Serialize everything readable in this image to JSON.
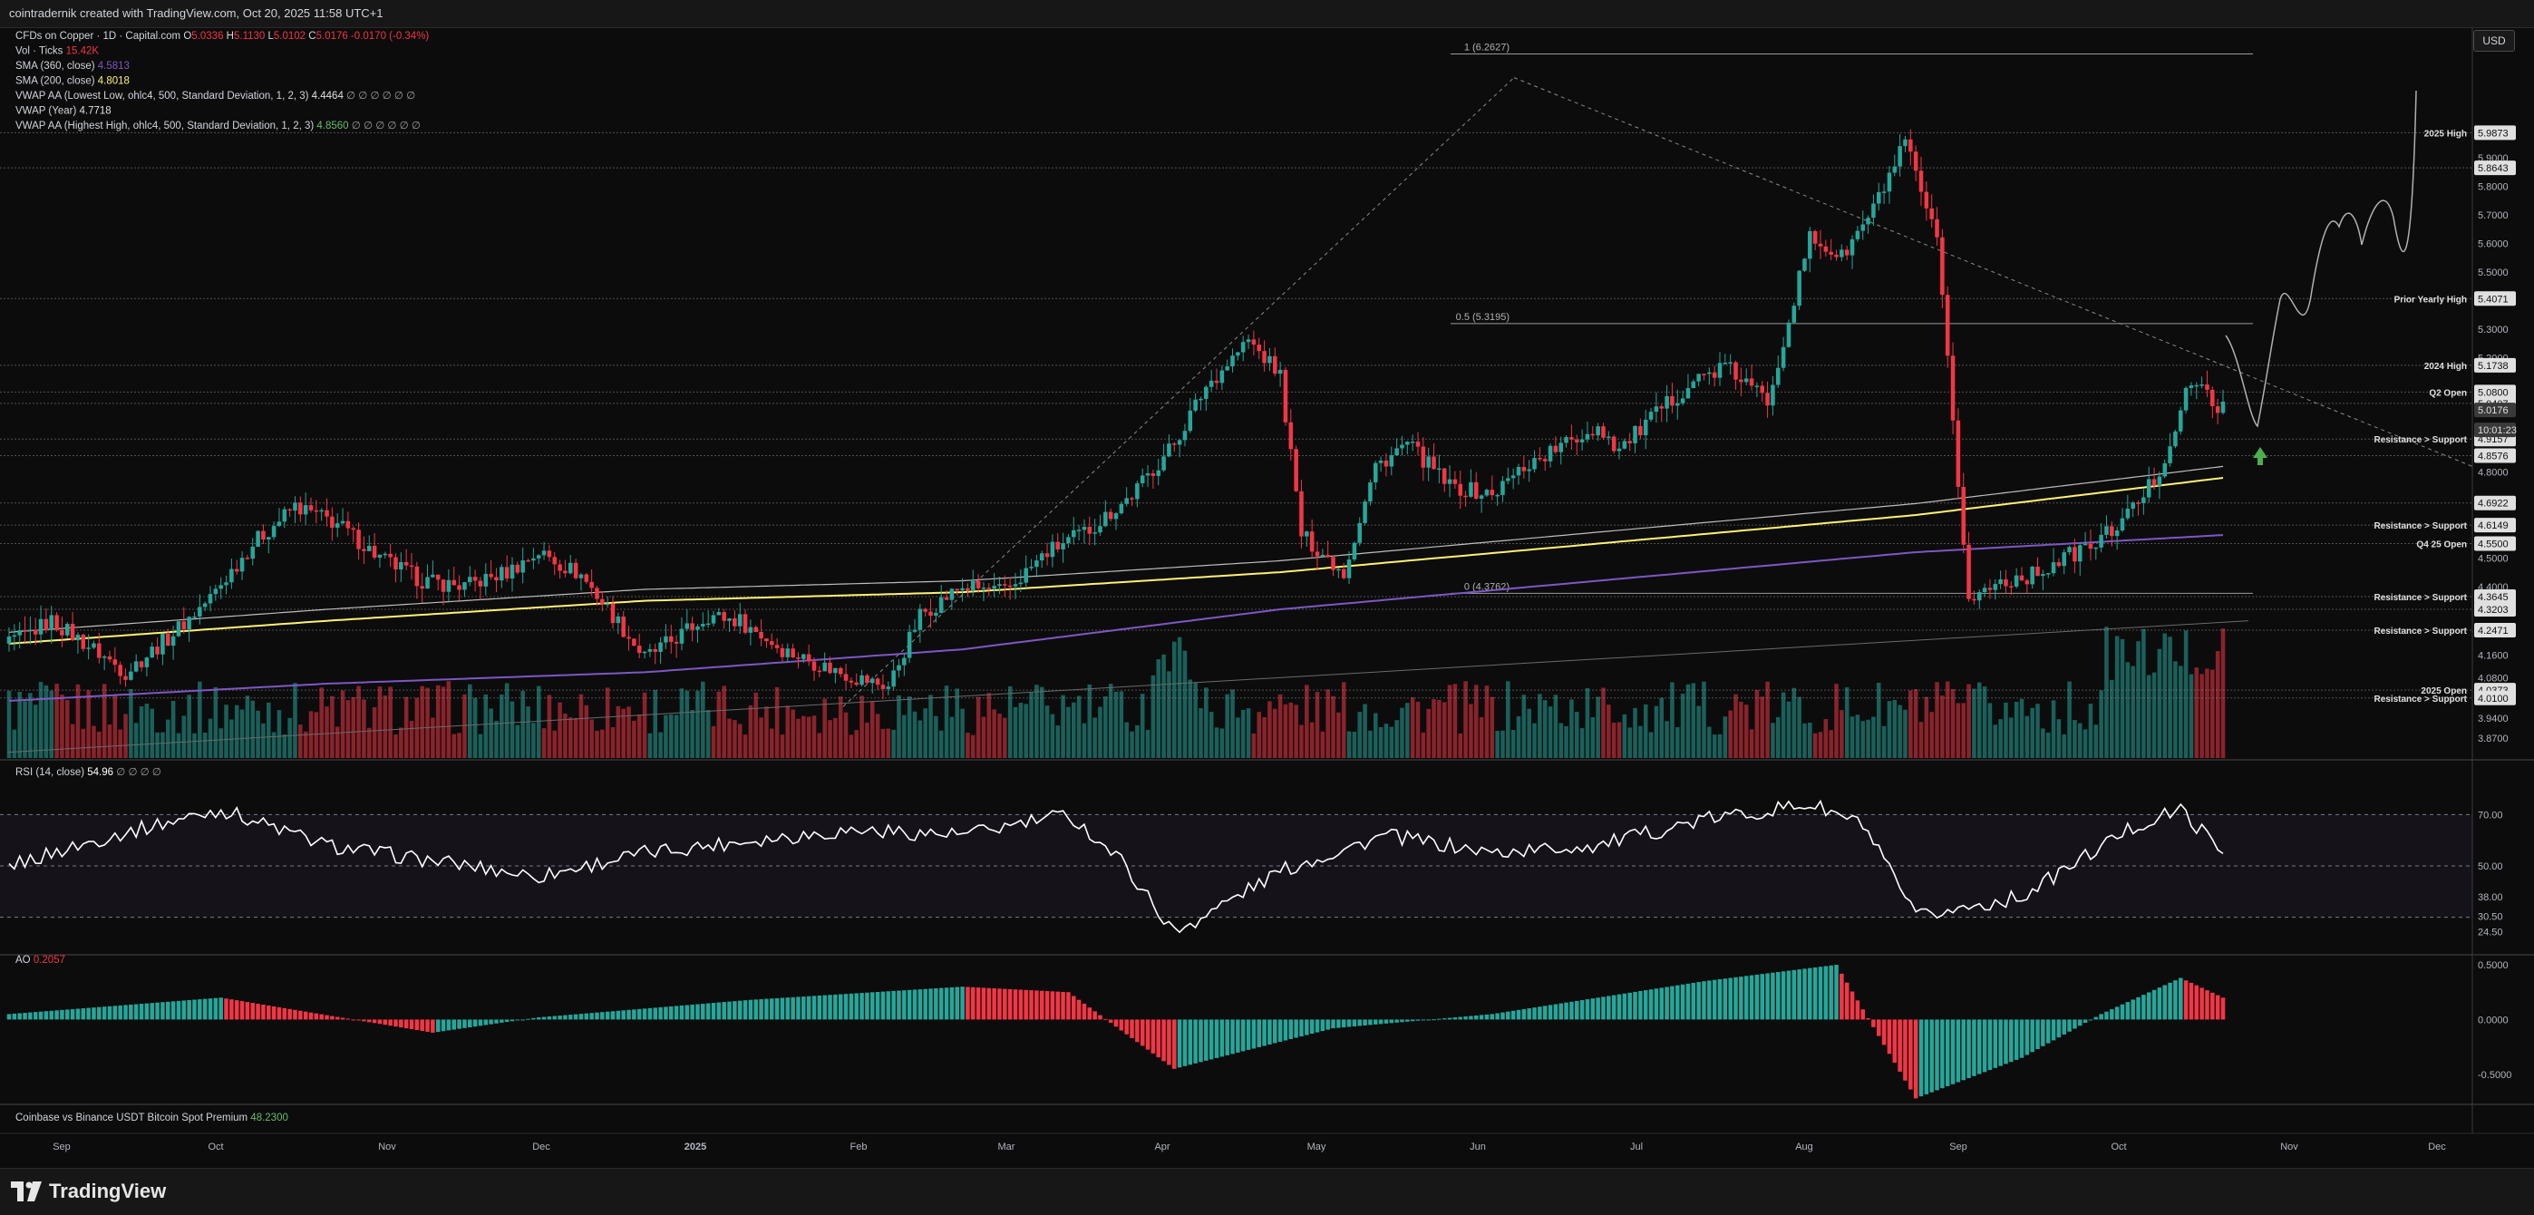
{
  "topbar": {
    "text": "cointradernik created with TradingView.com, Oct 20, 2025 11:58 UTC+1"
  },
  "legend": [
    {
      "parts": [
        [
          "CFDs on Copper · 1D · Capital.com ",
          "#d1d4dc"
        ],
        [
          "O",
          "#d1d4dc"
        ],
        [
          "5.0336 ",
          "#f23645"
        ],
        [
          "H",
          "#d1d4dc"
        ],
        [
          "5.1130 ",
          "#f23645"
        ],
        [
          "L",
          "#d1d4dc"
        ],
        [
          "5.0102 ",
          "#f23645"
        ],
        [
          "C",
          "#d1d4dc"
        ],
        [
          "5.0176 -0.0170 (-0.34%)",
          "#f23645"
        ]
      ]
    },
    {
      "parts": [
        [
          "Vol · Ticks ",
          "#d1d4dc"
        ],
        [
          "15.42K",
          "#f23645"
        ]
      ]
    },
    {
      "parts": [
        [
          "SMA (360, close) ",
          "#d1d4dc"
        ],
        [
          "4.5813",
          "#7e57c2"
        ]
      ]
    },
    {
      "parts": [
        [
          "SMA (200, close) ",
          "#d1d4dc"
        ],
        [
          "4.8018",
          "#fff176"
        ]
      ]
    },
    {
      "parts": [
        [
          "VWAP AA (Lowest Low, ohlc4, 500, Standard Deviation, 1, 2, 3) ",
          "#d1d4dc"
        ],
        [
          "4.4464 ",
          "#e0e0e0"
        ],
        [
          "∅ ∅ ∅ ∅ ∅ ∅",
          "#9a9a9a"
        ]
      ]
    },
    {
      "parts": [
        [
          "VWAP (Year) ",
          "#d1d4dc"
        ],
        [
          "4.7718",
          "#e0e0e0"
        ]
      ]
    },
    {
      "parts": [
        [
          "VWAP AA (Highest High, ohlc4, 500, Standard Deviation, 1, 2, 3) ",
          "#d1d4dc"
        ],
        [
          "4.8560 ",
          "#66bb6a"
        ],
        [
          "∅ ∅ ∅ ∅ ∅ ∅",
          "#9a9a9a"
        ]
      ]
    }
  ],
  "rsi_legend": {
    "label": "RSI (14, close) ",
    "value": "54.96",
    "extra": " ∅ ∅ ∅ ∅"
  },
  "ao_legend": {
    "label": "AO ",
    "value": "0.2057"
  },
  "premium_legend": {
    "label": "Coinbase vs Binance USDT Bitcoin Spot Premium ",
    "value": "48.2300"
  },
  "currency_button": "USD",
  "footer": {
    "logo_text": "TradingView"
  },
  "colors": {
    "bull": "#26a69a",
    "bear": "#f23645",
    "sma200": "#fff176",
    "sma360": "#7e57c2",
    "vwap_high": "#66bb6a",
    "vwap_grey": "#bdbdbd",
    "background": "#0c0c0c"
  },
  "chart_data": {
    "type": "candlestick",
    "symbol": "CFDs on Copper",
    "interval": "1D",
    "ylim": [
      3.8,
      6.35
    ],
    "y_ticks": [
      "6.0000",
      "5.9000",
      "5.8000",
      "5.7000",
      "5.6000",
      "5.5000",
      "5.3000",
      "5.2000",
      "4.8000",
      "4.5000",
      "4.4000",
      "4.1600",
      "4.0800",
      "3.9400",
      "3.8700"
    ],
    "x_ticks": [
      "Sep",
      "Oct",
      "Nov",
      "Dec",
      "2025",
      "Feb",
      "Mar",
      "Apr",
      "May",
      "Jun",
      "Jul",
      "Aug",
      "Sep",
      "Oct",
      "Nov",
      "Dec"
    ],
    "price_badges": [
      {
        "label": "2025 High",
        "value": "5.9873",
        "color": "#e0e0e0"
      },
      {
        "label": "",
        "value": "5.8643",
        "color": "#e0e0e0"
      },
      {
        "label": "Prior Yearly High",
        "value": "5.4071",
        "color": "#e0e0e0"
      },
      {
        "label": "2024 High",
        "value": "5.1738",
        "color": "#e0e0e0"
      },
      {
        "label": "Q2 Open",
        "value": "5.0800",
        "color": "#e0e0e0"
      },
      {
        "label": "",
        "value": "5.0407",
        "color": "#e0e0e0"
      },
      {
        "label": "",
        "value": "5.0176",
        "color": "#9e9e9e"
      },
      {
        "label": "Resistance > Support",
        "value": "4.9157",
        "color": "#e0e0e0"
      },
      {
        "label": "",
        "value": "4.8576",
        "color": "#e0e0e0"
      },
      {
        "label": "",
        "value": "4.6922",
        "color": "#e0e0e0"
      },
      {
        "label": "Resistance > Support",
        "value": "4.6149",
        "color": "#e0e0e0"
      },
      {
        "label": "Q4 25 Open",
        "value": "4.5500",
        "color": "#e0e0e0"
      },
      {
        "label": "Resistance > Support",
        "value": "4.3645",
        "color": "#e0e0e0"
      },
      {
        "label": "",
        "value": "4.3203",
        "color": "#e0e0e0"
      },
      {
        "label": "Resistance > Support",
        "value": "4.2471",
        "color": "#e0e0e0"
      },
      {
        "label": "2025 Open",
        "value": "4.0373",
        "color": "#e0e0e0"
      },
      {
        "label": "Resistance > Support",
        "value": "4.0100",
        "color": "#e0e0e0"
      }
    ],
    "countdown": "10:01:23",
    "fib_labels": [
      "1 (6.2627)",
      "0.5 (5.3195)",
      "0 (4.3762)"
    ],
    "price_path_x": [
      0,
      8,
      16,
      22,
      30,
      38,
      46,
      54,
      62,
      70,
      78,
      86,
      94,
      100,
      108,
      114,
      120,
      126,
      132,
      138,
      146,
      154,
      160,
      166,
      172,
      180,
      188,
      196,
      204,
      212,
      220,
      226,
      234,
      240,
      244,
      252,
      258,
      264,
      272,
      280,
      286,
      294,
      300,
      304,
      312,
      318,
      324,
      332,
      340,
      346,
      352,
      358,
      364,
      370,
      376,
      382,
      388,
      394,
      400,
      406,
      412,
      418
    ],
    "price_path_y": [
      4.2,
      4.28,
      4.18,
      4.1,
      4.22,
      4.36,
      4.55,
      4.68,
      4.62,
      4.5,
      4.42,
      4.4,
      4.45,
      4.52,
      4.44,
      4.3,
      4.15,
      4.22,
      4.3,
      4.28,
      4.18,
      4.12,
      4.08,
      4.05,
      4.3,
      4.4,
      4.38,
      4.52,
      4.6,
      4.72,
      4.9,
      5.1,
      5.26,
      5.14,
      4.58,
      4.45,
      4.82,
      4.9,
      4.75,
      4.72,
      4.82,
      4.9,
      4.96,
      4.88,
      5.02,
      5.12,
      5.17,
      5.05,
      5.62,
      5.55,
      5.72,
      5.95,
      5.6,
      4.35,
      4.42,
      4.44,
      4.5,
      4.55,
      4.65,
      4.8,
      5.12,
      5.02
    ],
    "sma200_x": [
      0,
      60,
      120,
      180,
      240,
      300,
      360,
      418
    ],
    "sma200_y": [
      4.2,
      4.28,
      4.35,
      4.38,
      4.45,
      4.55,
      4.65,
      4.78
    ],
    "sma360_x": [
      0,
      60,
      120,
      180,
      240,
      300,
      360,
      418
    ],
    "sma360_y": [
      4.0,
      4.06,
      4.1,
      4.18,
      4.32,
      4.42,
      4.52,
      4.58
    ],
    "rsi": {
      "ylim": [
        20,
        80
      ],
      "ticks": [
        "70.00",
        "50.00",
        "38.00",
        "30.50",
        "24.50"
      ],
      "x": [
        0,
        20,
        40,
        60,
        80,
        100,
        120,
        140,
        160,
        180,
        200,
        210,
        220,
        240,
        260,
        280,
        300,
        320,
        340,
        350,
        360,
        380,
        400,
        410,
        418
      ],
      "y": [
        50,
        62,
        72,
        58,
        52,
        46,
        55,
        60,
        64,
        62,
        70,
        52,
        24,
        48,
        62,
        55,
        58,
        68,
        74,
        66,
        30,
        38,
        64,
        72,
        55
      ]
    },
    "ao": {
      "ylim": [
        -0.75,
        0.55
      ],
      "ticks": [
        "0.5000",
        "0.0000",
        "-0.5000"
      ],
      "x": [
        0,
        40,
        80,
        100,
        140,
        180,
        200,
        220,
        250,
        280,
        320,
        345,
        360,
        380,
        395,
        410,
        418
      ],
      "values": [
        0.05,
        0.2,
        -0.12,
        0.02,
        0.18,
        0.3,
        0.25,
        -0.45,
        -0.08,
        0.05,
        0.35,
        0.5,
        -0.72,
        -0.35,
        0.05,
        0.38,
        0.2
      ]
    }
  }
}
